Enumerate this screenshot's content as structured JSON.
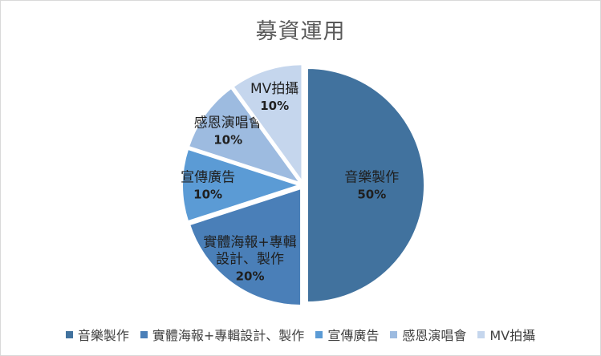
{
  "chart_data": {
    "type": "pie",
    "title": "募資運用",
    "slices": [
      {
        "name": "音樂製作",
        "label_lines": [
          "音樂製作"
        ],
        "value": 50,
        "value_label": "50%",
        "color": "#41729e",
        "label_color": "#1f1f1f"
      },
      {
        "name": "實體海報+專輯設計、製作",
        "label_lines": [
          "實體海報+專輯",
          "設計、製作"
        ],
        "value": 20,
        "value_label": "20%",
        "color": "#4a7fb8",
        "label_color": "#1f1f1f"
      },
      {
        "name": "宣傳廣告",
        "label_lines": [
          "宣傳廣告"
        ],
        "value": 10,
        "value_label": "10%",
        "color": "#5b9bd5",
        "label_color": "#1f1f1f"
      },
      {
        "name": "感恩演唱會",
        "label_lines": [
          "感恩演唱會"
        ],
        "value": 10,
        "value_label": "10%",
        "color": "#9dbbe0",
        "label_color": "#1f1f1f"
      },
      {
        "name": "MV拍攝",
        "label_lines": [
          "MV拍攝"
        ],
        "value": 10,
        "value_label": "10%",
        "color": "#c5d6ed",
        "label_color": "#1f1f1f"
      }
    ],
    "legend_position": "bottom",
    "exploded": true
  }
}
